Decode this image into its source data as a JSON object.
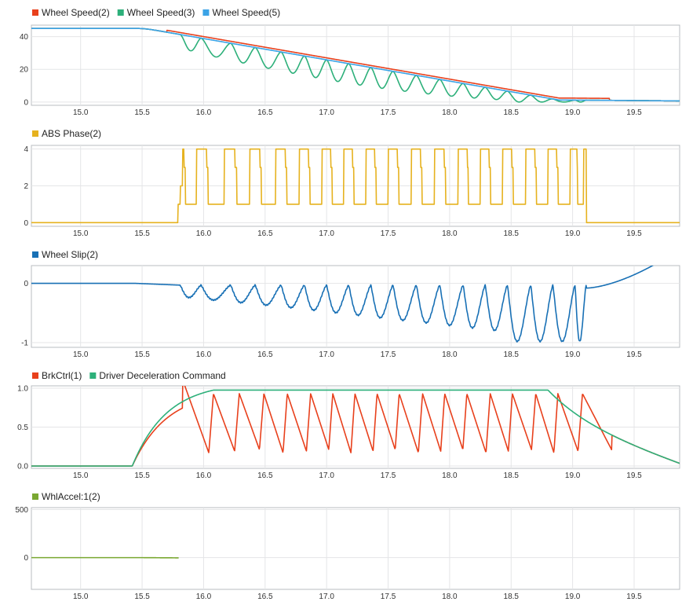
{
  "chart_data": [
    {
      "type": "line",
      "xlim": [
        14.6,
        19.87
      ],
      "ylim": [
        -2,
        47
      ],
      "yticks": [
        0,
        20,
        40
      ],
      "xticks": [
        15.0,
        15.5,
        16.0,
        16.5,
        17.0,
        17.5,
        18.0,
        18.5,
        19.0,
        19.5
      ],
      "grid": true,
      "legend": "top-left",
      "series": [
        {
          "name": "Wheel Speed(2)",
          "color": "#e8401c",
          "kind": "speed_ref"
        },
        {
          "name": "Wheel Speed(3)",
          "color": "#2db07a",
          "kind": "speed_wheel"
        },
        {
          "name": "Wheel Speed(5)",
          "color": "#3ba3e6",
          "kind": "speed_vehicle"
        }
      ]
    },
    {
      "type": "line",
      "xlim": [
        14.6,
        19.87
      ],
      "ylim": [
        -0.2,
        4.2
      ],
      "yticks": [
        0,
        2,
        4
      ],
      "xticks": [
        15.0,
        15.5,
        16.0,
        16.5,
        17.0,
        17.5,
        18.0,
        18.5,
        19.0,
        19.5
      ],
      "grid": true,
      "legend": "top-left",
      "series": [
        {
          "name": "ABS Phase(2)",
          "color": "#e6b21f",
          "kind": "abs_phase"
        }
      ]
    },
    {
      "type": "line",
      "xlim": [
        14.6,
        19.87
      ],
      "ylim": [
        -1.08,
        0.3
      ],
      "yticks": [
        -1,
        0
      ],
      "xticks": [
        15.0,
        15.5,
        16.0,
        16.5,
        17.0,
        17.5,
        18.0,
        18.5,
        19.0,
        19.5
      ],
      "grid": true,
      "legend": "top-left",
      "series": [
        {
          "name": "Wheel Slip(2)",
          "color": "#1870b5",
          "kind": "slip"
        }
      ]
    },
    {
      "type": "line",
      "xlim": [
        14.6,
        19.87
      ],
      "ylim": [
        -0.03,
        1.03
      ],
      "yticks": [
        0,
        0.5,
        1.0
      ],
      "xticks": [
        15.0,
        15.5,
        16.0,
        16.5,
        17.0,
        17.5,
        18.0,
        18.5,
        19.0,
        19.5
      ],
      "grid": true,
      "legend": "top-left",
      "series": [
        {
          "name": "BrkCtrl(1)",
          "color": "#e8401c",
          "kind": "brake"
        },
        {
          "name": "Driver Deceleration Command",
          "color": "#2db07a",
          "kind": "driver"
        }
      ]
    },
    {
      "type": "line",
      "xlim": [
        14.6,
        19.87
      ],
      "ylim": [
        -330,
        520
      ],
      "yticks": [
        0,
        500
      ],
      "xticks": [
        15.0,
        15.5,
        16.0,
        16.5,
        17.0,
        17.5,
        18.0,
        18.5,
        19.0,
        19.5
      ],
      "grid": true,
      "legend": "top-left",
      "series": [
        {
          "name": "WhlAccel:1(2)",
          "color": "#7aa832",
          "kind": "accel"
        }
      ]
    }
  ]
}
